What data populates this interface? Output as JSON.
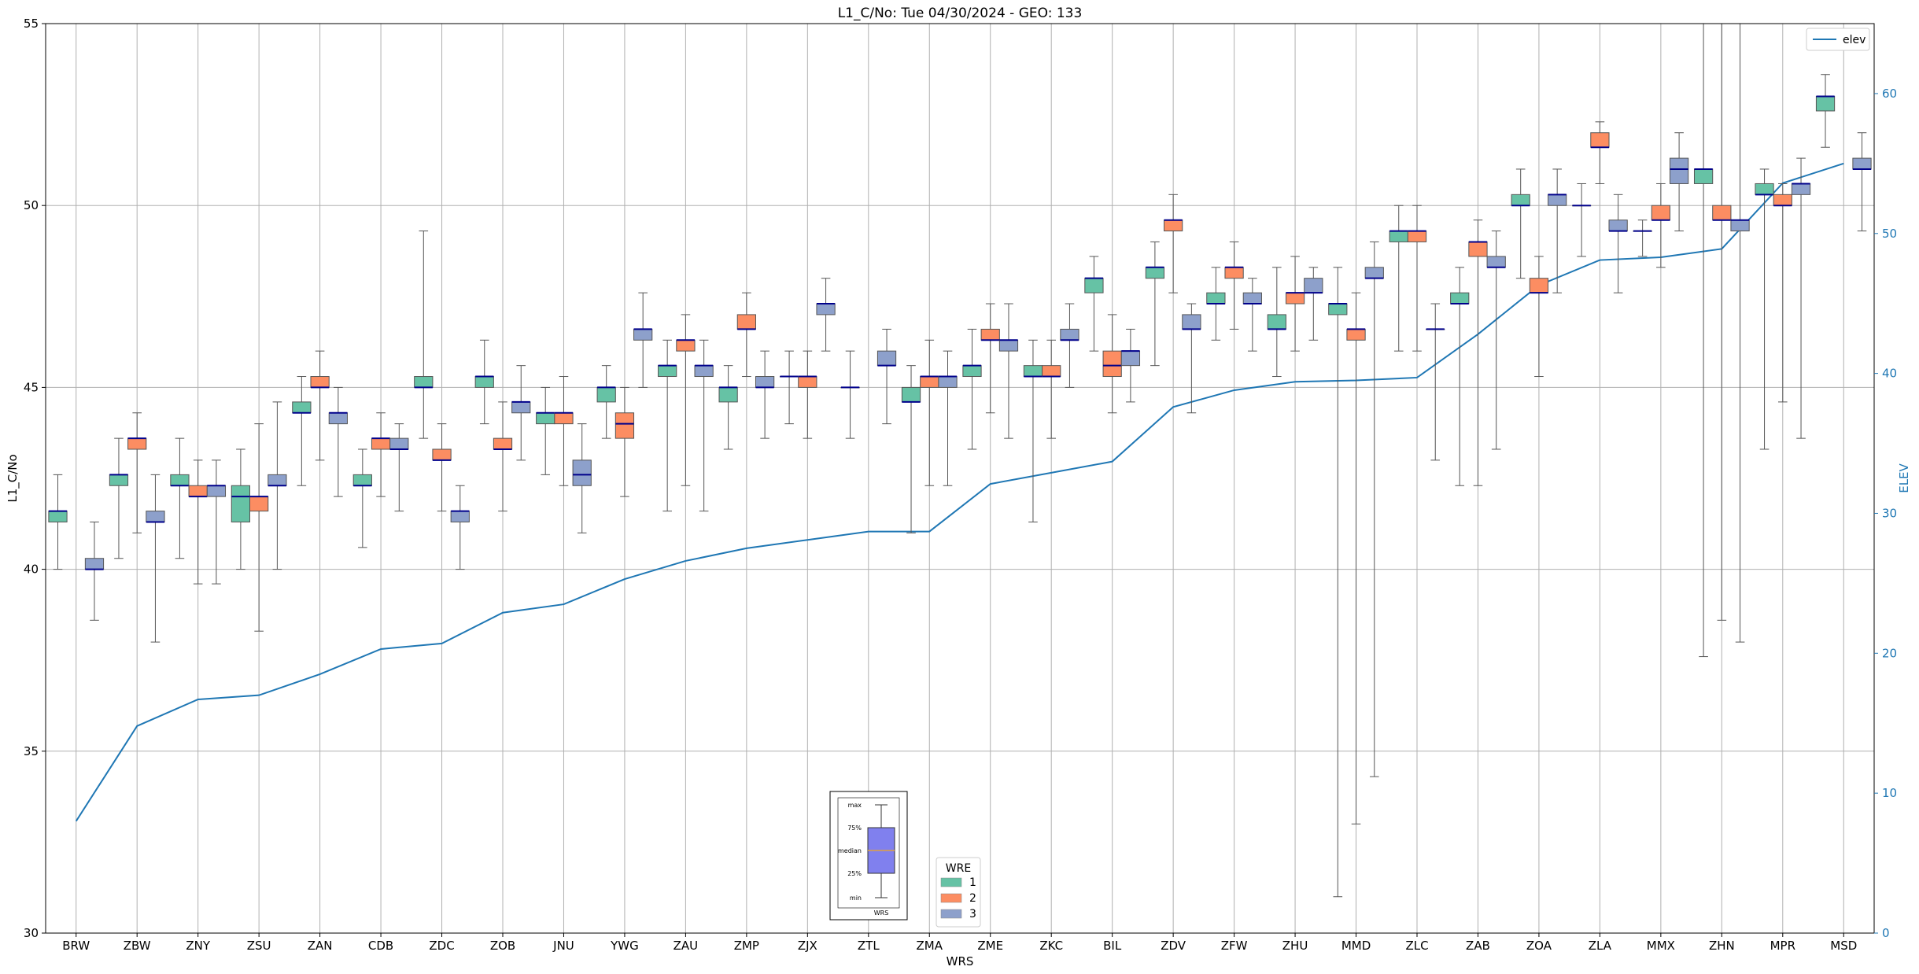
{
  "chart_data": {
    "type": "box",
    "title": "L1_C/No: Tue 04/30/2024 - GEO: 133",
    "xlabel": "WRS",
    "ylabel": "L1_C/No",
    "y2label": "ELEV",
    "ylim": [
      30,
      55
    ],
    "y2lim": [
      0,
      65
    ],
    "yticks": [
      30,
      35,
      40,
      45,
      50,
      55
    ],
    "y2ticks": [
      0,
      10,
      20,
      30,
      40,
      50,
      60
    ],
    "grid": true,
    "categories": [
      "BRW",
      "ZBW",
      "ZNY",
      "ZSU",
      "ZAN",
      "CDB",
      "ZDC",
      "ZOB",
      "JNU",
      "YWG",
      "ZAU",
      "ZMP",
      "ZJX",
      "ZTL",
      "ZMA",
      "ZME",
      "ZKC",
      "BIL",
      "ZDV",
      "ZFW",
      "ZHU",
      "MMD",
      "ZLC",
      "ZAB",
      "ZOA",
      "ZLA",
      "MMX",
      "ZHN",
      "MPR",
      "MSD"
    ],
    "colors": {
      "1": "#66c2a5",
      "2": "#fc8d62",
      "3": "#8da0cb",
      "elev": "#1f77b4",
      "median": "#00008b"
    },
    "elev_legend": "elev",
    "wre_legend": {
      "title": "WRE",
      "entries": [
        "1",
        "2",
        "3"
      ]
    },
    "inset_legend": {
      "labels": [
        "max",
        "75%",
        "median",
        "25%",
        "min"
      ],
      "xlabel": "WRS"
    },
    "elev": [
      8,
      14.8,
      16.7,
      17,
      18.5,
      20.3,
      20.7,
      22.9,
      23.5,
      25.3,
      26.6,
      27.5,
      28.1,
      28.7,
      28.7,
      32.1,
      32.9,
      33.7,
      37.6,
      38.8,
      39.4,
      39.5,
      39.7,
      42.8,
      46.3,
      48.1,
      48.3,
      48.9,
      53.6,
      55
    ],
    "series": [
      {
        "name": "1",
        "boxes": [
          {
            "cat": "BRW",
            "min": 40,
            "q1": 41.3,
            "med": 41.6,
            "q3": 41.6,
            "max": 42.6
          },
          {
            "cat": "ZBW",
            "min": 40.3,
            "q1": 42.3,
            "med": 42.6,
            "q3": 42.6,
            "max": 43.6
          },
          {
            "cat": "ZNY",
            "min": 40.3,
            "q1": 42.3,
            "med": 42.3,
            "q3": 42.6,
            "max": 43.6
          },
          {
            "cat": "ZSU",
            "min": 40,
            "q1": 41.3,
            "med": 42,
            "q3": 42.3,
            "max": 43.3
          },
          {
            "cat": "ZAN",
            "min": 42.3,
            "q1": 44.3,
            "med": 44.3,
            "q3": 44.6,
            "max": 45.3
          },
          {
            "cat": "CDB",
            "min": 40.6,
            "q1": 42.3,
            "med": 42.3,
            "q3": 42.6,
            "max": 43.3
          },
          {
            "cat": "ZDC",
            "min": 43.6,
            "q1": 45,
            "med": 45,
            "q3": 45.3,
            "max": 49.3
          },
          {
            "cat": "ZOB",
            "min": 44,
            "q1": 45,
            "med": 45.3,
            "q3": 45.3,
            "max": 46.3
          },
          {
            "cat": "JNU",
            "min": 42.6,
            "q1": 44,
            "med": 44.3,
            "q3": 44.3,
            "max": 45
          },
          {
            "cat": "YWG",
            "min": 43.6,
            "q1": 44.6,
            "med": 45,
            "q3": 45,
            "max": 45.6
          },
          {
            "cat": "ZAU",
            "min": 41.6,
            "q1": 45.3,
            "med": 45.6,
            "q3": 45.6,
            "max": 46.3
          },
          {
            "cat": "ZMP",
            "min": 43.3,
            "q1": 44.6,
            "med": 45,
            "q3": 45,
            "max": 45.6
          },
          {
            "cat": "ZJX",
            "min": 44,
            "q1": 45.3,
            "med": 45.3,
            "q3": 45.3,
            "max": 46
          },
          {
            "cat": "ZTL",
            "min": 43.6,
            "q1": 45,
            "med": 45,
            "q3": 45,
            "max": 46
          },
          {
            "cat": "ZMA",
            "min": 41,
            "q1": 44.6,
            "med": 44.6,
            "q3": 45,
            "max": 45.6
          },
          {
            "cat": "ZME",
            "min": 43.3,
            "q1": 45.3,
            "med": 45.6,
            "q3": 45.6,
            "max": 46.6
          },
          {
            "cat": "ZKC",
            "min": 41.3,
            "q1": 45.3,
            "med": 45.3,
            "q3": 45.6,
            "max": 46.3
          },
          {
            "cat": "BIL",
            "min": 46,
            "q1": 47.6,
            "med": 48,
            "q3": 48,
            "max": 48.6
          },
          {
            "cat": "ZDV",
            "min": 45.6,
            "q1": 48,
            "med": 48.3,
            "q3": 48.3,
            "max": 49
          },
          {
            "cat": "ZFW",
            "min": 46.3,
            "q1": 47.3,
            "med": 47.3,
            "q3": 47.6,
            "max": 48.3
          },
          {
            "cat": "ZHU",
            "min": 45.3,
            "q1": 46.6,
            "med": 46.6,
            "q3": 47,
            "max": 48.3
          },
          {
            "cat": "MMD",
            "min": 31,
            "q1": 47,
            "med": 47.3,
            "q3": 47.3,
            "max": 48.3
          },
          {
            "cat": "ZLC",
            "min": 46,
            "q1": 49,
            "med": 49.3,
            "q3": 49.3,
            "max": 50
          },
          {
            "cat": "ZAB",
            "min": 42.3,
            "q1": 47.3,
            "med": 47.3,
            "q3": 47.6,
            "max": 48.3
          },
          {
            "cat": "ZOA",
            "min": 48,
            "q1": 50,
            "med": 50,
            "q3": 50.3,
            "max": 51
          },
          {
            "cat": "ZLA",
            "min": 48.6,
            "q1": 50,
            "med": 50,
            "q3": 50,
            "max": 50.6
          },
          {
            "cat": "MMX",
            "min": 48.6,
            "q1": 49.3,
            "med": 49.3,
            "q3": 49.3,
            "max": 49.6
          },
          {
            "cat": "ZHN",
            "min": 37.6,
            "q1": 50.6,
            "med": 51,
            "q3": 51,
            "max": 55
          },
          {
            "cat": "MPR",
            "min": 43.3,
            "q1": 50.3,
            "med": 50.3,
            "q3": 50.6,
            "max": 51
          },
          {
            "cat": "MSD",
            "min": 51.6,
            "q1": 52.6,
            "med": 53,
            "q3": 53,
            "max": 53.6
          }
        ]
      },
      {
        "name": "2",
        "boxes": [
          {
            "cat": "ZBW",
            "min": 41,
            "q1": 43.3,
            "med": 43.6,
            "q3": 43.6,
            "max": 44.3
          },
          {
            "cat": "ZNY",
            "min": 39.6,
            "q1": 42,
            "med": 42,
            "q3": 42.3,
            "max": 43
          },
          {
            "cat": "ZSU",
            "min": 38.3,
            "q1": 41.6,
            "med": 42,
            "q3": 42,
            "max": 44
          },
          {
            "cat": "ZAN",
            "min": 43,
            "q1": 45,
            "med": 45,
            "q3": 45.3,
            "max": 46
          },
          {
            "cat": "CDB",
            "min": 42,
            "q1": 43.3,
            "med": 43.6,
            "q3": 43.6,
            "max": 44.3
          },
          {
            "cat": "ZDC",
            "min": 41.6,
            "q1": 43,
            "med": 43,
            "q3": 43.3,
            "max": 44
          },
          {
            "cat": "ZOB",
            "min": 41.6,
            "q1": 43.3,
            "med": 43.3,
            "q3": 43.6,
            "max": 44.6
          },
          {
            "cat": "JNU",
            "min": 42.3,
            "q1": 44,
            "med": 44.3,
            "q3": 44.3,
            "max": 45.3
          },
          {
            "cat": "YWG",
            "min": 42,
            "q1": 43.6,
            "med": 44,
            "q3": 44.3,
            "max": 45
          },
          {
            "cat": "ZAU",
            "min": 42.3,
            "q1": 46,
            "med": 46.3,
            "q3": 46.3,
            "max": 47
          },
          {
            "cat": "ZMP",
            "min": 45.3,
            "q1": 46.6,
            "med": 46.6,
            "q3": 47,
            "max": 47.6
          },
          {
            "cat": "ZJX",
            "min": 43.6,
            "q1": 45,
            "med": 45.3,
            "q3": 45.3,
            "max": 46
          },
          {
            "cat": "ZMA",
            "min": 42.3,
            "q1": 45,
            "med": 45.3,
            "q3": 45.3,
            "max": 46.3
          },
          {
            "cat": "ZME",
            "min": 44.3,
            "q1": 46.3,
            "med": 46.3,
            "q3": 46.6,
            "max": 47.3
          },
          {
            "cat": "ZKC",
            "min": 43.6,
            "q1": 45.3,
            "med": 45.3,
            "q3": 45.6,
            "max": 46.3
          },
          {
            "cat": "BIL",
            "min": 44.3,
            "q1": 45.3,
            "med": 45.6,
            "q3": 46,
            "max": 47
          },
          {
            "cat": "ZDV",
            "min": 47.6,
            "q1": 49.3,
            "med": 49.6,
            "q3": 49.6,
            "max": 50.3
          },
          {
            "cat": "ZFW",
            "min": 46.6,
            "q1": 48,
            "med": 48.3,
            "q3": 48.3,
            "max": 49
          },
          {
            "cat": "ZHU",
            "min": 46,
            "q1": 47.3,
            "med": 47.6,
            "q3": 47.6,
            "max": 48.6
          },
          {
            "cat": "MMD",
            "min": 33,
            "q1": 46.3,
            "med": 46.6,
            "q3": 46.6,
            "max": 47.6
          },
          {
            "cat": "ZLC",
            "min": 46,
            "q1": 49,
            "med": 49.3,
            "q3": 49.3,
            "max": 50
          },
          {
            "cat": "ZAB",
            "min": 42.3,
            "q1": 48.6,
            "med": 49,
            "q3": 49,
            "max": 49.6
          },
          {
            "cat": "ZOA",
            "min": 45.3,
            "q1": 47.6,
            "med": 47.6,
            "q3": 48,
            "max": 48.6
          },
          {
            "cat": "ZLA",
            "min": 50.6,
            "q1": 51.6,
            "med": 51.6,
            "q3": 52,
            "max": 52.3
          },
          {
            "cat": "MMX",
            "min": 48.3,
            "q1": 49.6,
            "med": 49.6,
            "q3": 50,
            "max": 50.6
          },
          {
            "cat": "ZHN",
            "min": 38.6,
            "q1": 49.6,
            "med": 49.6,
            "q3": 50,
            "max": 55
          },
          {
            "cat": "MPR",
            "min": 44.6,
            "q1": 50,
            "med": 50,
            "q3": 50.3,
            "max": 50.6
          }
        ]
      },
      {
        "name": "3",
        "boxes": [
          {
            "cat": "BRW",
            "min": 38.6,
            "q1": 40,
            "med": 40,
            "q3": 40.3,
            "max": 41.3
          },
          {
            "cat": "ZBW",
            "min": 38,
            "q1": 41.3,
            "med": 41.3,
            "q3": 41.6,
            "max": 42.6
          },
          {
            "cat": "ZNY",
            "min": 39.6,
            "q1": 42,
            "med": 42.3,
            "q3": 42.3,
            "max": 43
          },
          {
            "cat": "ZSU",
            "min": 40,
            "q1": 42.3,
            "med": 42.3,
            "q3": 42.6,
            "max": 44.6
          },
          {
            "cat": "ZAN",
            "min": 42,
            "q1": 44,
            "med": 44.3,
            "q3": 44.3,
            "max": 45
          },
          {
            "cat": "CDB",
            "min": 41.6,
            "q1": 43.3,
            "med": 43.3,
            "q3": 43.6,
            "max": 44
          },
          {
            "cat": "ZDC",
            "min": 40,
            "q1": 41.3,
            "med": 41.6,
            "q3": 41.6,
            "max": 42.3
          },
          {
            "cat": "ZOB",
            "min": 43,
            "q1": 44.3,
            "med": 44.6,
            "q3": 44.6,
            "max": 45.6
          },
          {
            "cat": "JNU",
            "min": 41,
            "q1": 42.3,
            "med": 42.6,
            "q3": 43,
            "max": 44
          },
          {
            "cat": "YWG",
            "min": 45,
            "q1": 46.3,
            "med": 46.6,
            "q3": 46.6,
            "max": 47.6
          },
          {
            "cat": "ZAU",
            "min": 41.6,
            "q1": 45.3,
            "med": 45.6,
            "q3": 45.6,
            "max": 46.3
          },
          {
            "cat": "ZMP",
            "min": 43.6,
            "q1": 45,
            "med": 45,
            "q3": 45.3,
            "max": 46
          },
          {
            "cat": "ZJX",
            "min": 46,
            "q1": 47,
            "med": 47.3,
            "q3": 47.3,
            "max": 48
          },
          {
            "cat": "ZTL",
            "min": 44,
            "q1": 45.6,
            "med": 45.6,
            "q3": 46,
            "max": 46.6
          },
          {
            "cat": "ZMA",
            "min": 42.3,
            "q1": 45,
            "med": 45.3,
            "q3": 45.3,
            "max": 46
          },
          {
            "cat": "ZME",
            "min": 43.6,
            "q1": 46,
            "med": 46.3,
            "q3": 46.3,
            "max": 47.3
          },
          {
            "cat": "ZKC",
            "min": 45,
            "q1": 46.3,
            "med": 46.3,
            "q3": 46.6,
            "max": 47.3
          },
          {
            "cat": "BIL",
            "min": 44.6,
            "q1": 45.6,
            "med": 46,
            "q3": 46,
            "max": 46.6
          },
          {
            "cat": "ZDV",
            "min": 44.3,
            "q1": 46.6,
            "med": 46.6,
            "q3": 47,
            "max": 47.3
          },
          {
            "cat": "ZFW",
            "min": 46,
            "q1": 47.3,
            "med": 47.3,
            "q3": 47.6,
            "max": 48
          },
          {
            "cat": "ZHU",
            "min": 46.3,
            "q1": 47.6,
            "med": 47.6,
            "q3": 48,
            "max": 48.3
          },
          {
            "cat": "MMD",
            "min": 34.3,
            "q1": 48,
            "med": 48,
            "q3": 48.3,
            "max": 49
          },
          {
            "cat": "ZLC",
            "min": 43,
            "q1": 46.6,
            "med": 46.6,
            "q3": 46.6,
            "max": 47.3
          },
          {
            "cat": "ZAB",
            "min": 43.3,
            "q1": 48.3,
            "med": 48.3,
            "q3": 48.6,
            "max": 49.3
          },
          {
            "cat": "ZOA",
            "min": 47.6,
            "q1": 50,
            "med": 50.3,
            "q3": 50.3,
            "max": 51
          },
          {
            "cat": "ZLA",
            "min": 47.6,
            "q1": 49.3,
            "med": 49.3,
            "q3": 49.6,
            "max": 50.3
          },
          {
            "cat": "MMX",
            "min": 49.3,
            "q1": 50.6,
            "med": 51,
            "q3": 51.3,
            "max": 52
          },
          {
            "cat": "ZHN",
            "min": 38,
            "q1": 49.3,
            "med": 49.6,
            "q3": 49.6,
            "max": 55
          },
          {
            "cat": "MPR",
            "min": 43.6,
            "q1": 50.3,
            "med": 50.6,
            "q3": 50.6,
            "max": 51.3
          },
          {
            "cat": "MSD",
            "min": 49.3,
            "q1": 51,
            "med": 51,
            "q3": 51.3,
            "max": 52
          }
        ]
      }
    ]
  }
}
